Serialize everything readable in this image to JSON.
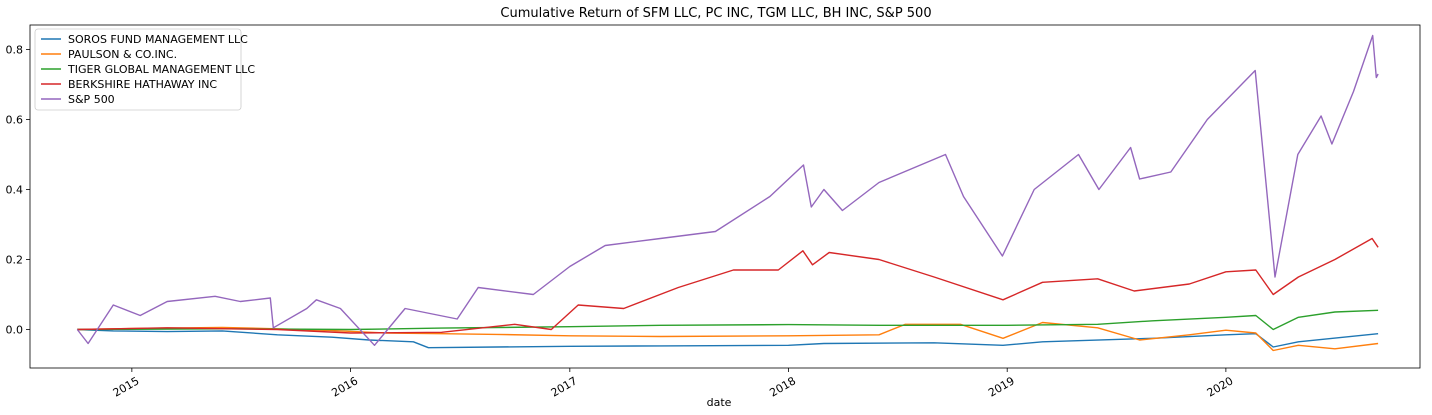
{
  "chart_data": {
    "type": "line",
    "title": "Cumulative Return of SFM LLC, PC INC, TGM LLC, BH INC, S&P 500",
    "xlabel": "date",
    "ylabel": "",
    "x_type": "date",
    "xlim": [
      "2014-07-15",
      "2020-11-20"
    ],
    "ylim": [
      -0.11,
      0.87
    ],
    "yticks": [
      0.0,
      0.2,
      0.4,
      0.6,
      0.8
    ],
    "ytick_labels": [
      "0.0",
      "0.2",
      "0.4",
      "0.6",
      "0.8"
    ],
    "xticks": [
      "2015-01-01",
      "2016-01-01",
      "2017-01-01",
      "2018-01-01",
      "2019-01-01",
      "2020-01-01"
    ],
    "xtick_labels": [
      "2015",
      "2016",
      "2017",
      "2018",
      "2019",
      "2020"
    ],
    "grid": false,
    "legend_position": "top-left",
    "series": [
      {
        "name": "SOROS FUND MANAGEMENT LLC",
        "color": "#1f77b4",
        "points": [
          [
            "2014-10-02",
            0.0
          ],
          [
            "2014-12-01",
            -0.004
          ],
          [
            "2015-03-01",
            -0.006
          ],
          [
            "2015-06-01",
            -0.004
          ],
          [
            "2015-09-01",
            -0.015
          ],
          [
            "2015-12-01",
            -0.022
          ],
          [
            "2016-02-01",
            -0.03
          ],
          [
            "2016-04-15",
            -0.035
          ],
          [
            "2016-05-10",
            -0.052
          ],
          [
            "2016-09-01",
            -0.05
          ],
          [
            "2017-01-01",
            -0.048
          ],
          [
            "2017-06-01",
            -0.047
          ],
          [
            "2018-01-01",
            -0.045
          ],
          [
            "2018-03-01",
            -0.04
          ],
          [
            "2018-09-01",
            -0.038
          ],
          [
            "2018-12-25",
            -0.045
          ],
          [
            "2019-03-01",
            -0.035
          ],
          [
            "2019-09-01",
            -0.025
          ],
          [
            "2020-01-01",
            -0.015
          ],
          [
            "2020-02-20",
            -0.012
          ],
          [
            "2020-03-20",
            -0.05
          ],
          [
            "2020-05-01",
            -0.035
          ],
          [
            "2020-09-11",
            -0.012
          ]
        ]
      },
      {
        "name": "PAULSON & CO.INC.",
        "color": "#ff7f0e",
        "points": [
          [
            "2014-10-02",
            0.0
          ],
          [
            "2014-12-01",
            0.002
          ],
          [
            "2015-03-01",
            0.004
          ],
          [
            "2015-06-01",
            0.006
          ],
          [
            "2015-09-01",
            0.002
          ],
          [
            "2015-12-01",
            -0.003
          ],
          [
            "2016-03-01",
            -0.01
          ],
          [
            "2016-06-01",
            -0.012
          ],
          [
            "2016-09-01",
            -0.014
          ],
          [
            "2017-01-01",
            -0.018
          ],
          [
            "2017-06-01",
            -0.02
          ],
          [
            "2018-01-01",
            -0.018
          ],
          [
            "2018-06-01",
            -0.015
          ],
          [
            "2018-07-15",
            0.015
          ],
          [
            "2018-10-15",
            0.015
          ],
          [
            "2018-12-25",
            -0.025
          ],
          [
            "2019-03-01",
            0.02
          ],
          [
            "2019-06-01",
            0.005
          ],
          [
            "2019-08-10",
            -0.03
          ],
          [
            "2019-11-01",
            -0.015
          ],
          [
            "2020-01-01",
            -0.002
          ],
          [
            "2020-02-20",
            -0.01
          ],
          [
            "2020-03-20",
            -0.06
          ],
          [
            "2020-05-01",
            -0.045
          ],
          [
            "2020-07-01",
            -0.055
          ],
          [
            "2020-09-11",
            -0.04
          ]
        ]
      },
      {
        "name": "TIGER GLOBAL MANAGEMENT LLC",
        "color": "#2ca02c",
        "points": [
          [
            "2014-10-02",
            0.0
          ],
          [
            "2015-06-01",
            0.002
          ],
          [
            "2016-01-01",
            0.0
          ],
          [
            "2016-06-01",
            0.004
          ],
          [
            "2017-01-01",
            0.008
          ],
          [
            "2017-06-01",
            0.012
          ],
          [
            "2018-01-01",
            0.014
          ],
          [
            "2018-06-01",
            0.012
          ],
          [
            "2019-01-01",
            0.012
          ],
          [
            "2019-06-01",
            0.015
          ],
          [
            "2019-09-01",
            0.025
          ],
          [
            "2020-01-01",
            0.035
          ],
          [
            "2020-02-20",
            0.04
          ],
          [
            "2020-03-20",
            0.0
          ],
          [
            "2020-05-01",
            0.035
          ],
          [
            "2020-07-01",
            0.05
          ],
          [
            "2020-09-11",
            0.055
          ]
        ]
      },
      {
        "name": "BERKSHIRE HATHAWAY INC",
        "color": "#d62728",
        "points": [
          [
            "2014-10-02",
            0.0
          ],
          [
            "2015-03-01",
            0.005
          ],
          [
            "2015-09-01",
            0.0
          ],
          [
            "2016-01-01",
            -0.01
          ],
          [
            "2016-06-01",
            -0.008
          ],
          [
            "2016-10-01",
            0.015
          ],
          [
            "2016-12-01",
            0.0
          ],
          [
            "2017-01-15",
            0.07
          ],
          [
            "2017-04-01",
            0.06
          ],
          [
            "2017-07-01",
            0.12
          ],
          [
            "2017-10-01",
            0.17
          ],
          [
            "2017-12-15",
            0.17
          ],
          [
            "2018-01-25",
            0.225
          ],
          [
            "2018-02-10",
            0.185
          ],
          [
            "2018-03-10",
            0.22
          ],
          [
            "2018-06-01",
            0.2
          ],
          [
            "2018-09-01",
            0.15
          ],
          [
            "2018-12-25",
            0.085
          ],
          [
            "2019-03-01",
            0.135
          ],
          [
            "2019-06-01",
            0.145
          ],
          [
            "2019-08-01",
            0.11
          ],
          [
            "2019-11-01",
            0.13
          ],
          [
            "2020-01-01",
            0.165
          ],
          [
            "2020-02-20",
            0.17
          ],
          [
            "2020-03-20",
            0.1
          ],
          [
            "2020-05-01",
            0.15
          ],
          [
            "2020-07-01",
            0.2
          ],
          [
            "2020-09-01",
            0.26
          ],
          [
            "2020-09-11",
            0.235
          ]
        ]
      },
      {
        "name": "S&P 500",
        "color": "#9467bd",
        "points": [
          [
            "2014-10-02",
            0.0
          ],
          [
            "2014-10-20",
            -0.04
          ],
          [
            "2014-12-01",
            0.07
          ],
          [
            "2015-01-15",
            0.04
          ],
          [
            "2015-03-01",
            0.08
          ],
          [
            "2015-05-20",
            0.095
          ],
          [
            "2015-07-01",
            0.08
          ],
          [
            "2015-08-20",
            0.09
          ],
          [
            "2015-08-25",
            0.005
          ],
          [
            "2015-10-20",
            0.06
          ],
          [
            "2015-11-05",
            0.085
          ],
          [
            "2015-12-15",
            0.06
          ],
          [
            "2016-02-10",
            -0.045
          ],
          [
            "2016-04-01",
            0.06
          ],
          [
            "2016-06-27",
            0.03
          ],
          [
            "2016-08-01",
            0.12
          ],
          [
            "2016-11-01",
            0.1
          ],
          [
            "2017-01-01",
            0.18
          ],
          [
            "2017-03-01",
            0.24
          ],
          [
            "2017-06-01",
            0.26
          ],
          [
            "2017-09-01",
            0.28
          ],
          [
            "2017-12-01",
            0.38
          ],
          [
            "2018-01-26",
            0.47
          ],
          [
            "2018-02-08",
            0.35
          ],
          [
            "2018-03-01",
            0.4
          ],
          [
            "2018-04-01",
            0.34
          ],
          [
            "2018-06-01",
            0.42
          ],
          [
            "2018-09-20",
            0.5
          ],
          [
            "2018-10-20",
            0.38
          ],
          [
            "2018-12-24",
            0.21
          ],
          [
            "2019-02-15",
            0.4
          ],
          [
            "2019-04-30",
            0.5
          ],
          [
            "2019-06-03",
            0.4
          ],
          [
            "2019-07-26",
            0.52
          ],
          [
            "2019-08-10",
            0.43
          ],
          [
            "2019-10-01",
            0.45
          ],
          [
            "2019-12-01",
            0.6
          ],
          [
            "2020-02-19",
            0.74
          ],
          [
            "2020-03-23",
            0.15
          ],
          [
            "2020-04-30",
            0.5
          ],
          [
            "2020-06-08",
            0.61
          ],
          [
            "2020-06-26",
            0.53
          ],
          [
            "2020-08-01",
            0.68
          ],
          [
            "2020-09-02",
            0.84
          ],
          [
            "2020-09-08",
            0.72
          ],
          [
            "2020-09-11",
            0.73
          ]
        ]
      }
    ]
  }
}
